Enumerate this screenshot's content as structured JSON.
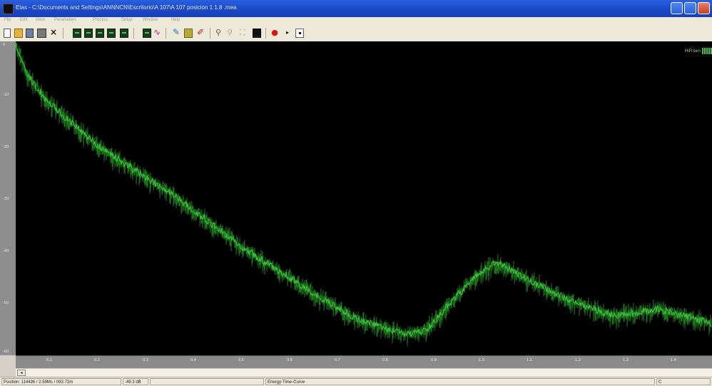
{
  "window": {
    "title": "Etas - C:\\Documents and Settings\\ANNNCN\\Escritorio\\A 107\\A 107 posicion 1 1.8 .mea"
  },
  "menu": [
    "File",
    "Edit",
    "View",
    "Parameters",
    "Process",
    "Setup",
    "Window",
    "Help"
  ],
  "legend": {
    "label": "HiFrsen",
    "color": "#45c045"
  },
  "plot": {
    "background": "#000000",
    "trace_color": "#3ec43e",
    "y_ticks": [
      "0",
      "-10",
      "-20",
      "-30",
      "-40",
      "-50",
      "-60"
    ],
    "x_ticks": [
      "0.1",
      "0.2",
      "0.3",
      "0.4",
      "0.5",
      "0.6",
      "0.7",
      "0.8",
      "0.9",
      "1.0",
      "1.1",
      "1.2",
      "1.3",
      "1.4"
    ]
  },
  "status": {
    "position": "Position: 114426 / 2.59Ms / 092.72m",
    "level": "-49.3 dB",
    "curve": "Energy-Time-Curve",
    "channel": "C"
  }
}
